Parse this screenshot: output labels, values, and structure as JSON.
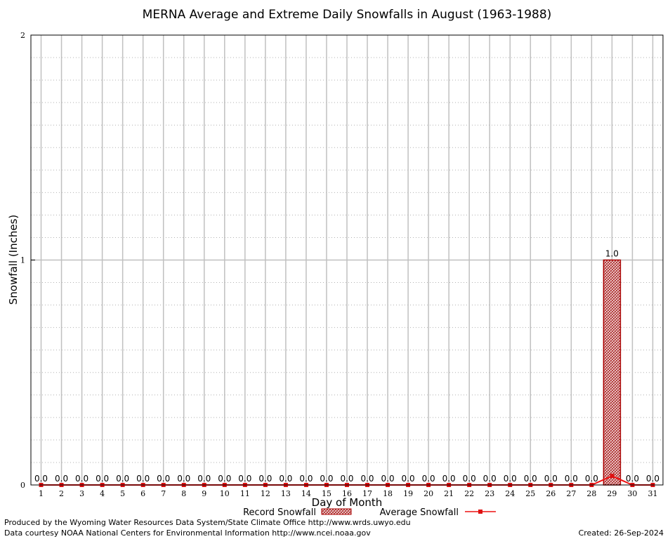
{
  "chart_data": {
    "type": "bar",
    "title": "MERNA Average and Extreme Daily Snowfalls in August (1963-1988)",
    "xlabel": "Day of Month",
    "ylabel": "Snowfall (Inches)",
    "ylim": [
      0,
      2
    ],
    "yticks": [
      "0",
      "1",
      "2"
    ],
    "grid": true,
    "legend_position": "bottom",
    "categories": [
      "1",
      "2",
      "3",
      "4",
      "5",
      "6",
      "7",
      "8",
      "9",
      "10",
      "11",
      "12",
      "13",
      "14",
      "15",
      "16",
      "17",
      "18",
      "19",
      "20",
      "21",
      "22",
      "23",
      "24",
      "25",
      "26",
      "27",
      "28",
      "29",
      "30",
      "31"
    ],
    "series": [
      {
        "name": "Record Snowfall",
        "kind": "bar",
        "values": [
          0,
          0,
          0,
          0,
          0,
          0,
          0,
          0,
          0,
          0,
          0,
          0,
          0,
          0,
          0,
          0,
          0,
          0,
          0,
          0,
          0,
          0,
          0,
          0,
          0,
          0,
          0,
          0,
          1.0,
          0,
          0
        ],
        "labels": [
          "0.0",
          "0.0",
          "0.0",
          "0.0",
          "0.0",
          "0.0",
          "0.0",
          "0.0",
          "0.0",
          "0.0",
          "0.0",
          "0.0",
          "0.0",
          "0.0",
          "0.0",
          "0.0",
          "0.0",
          "0.0",
          "0.0",
          "0.0",
          "0.0",
          "0.0",
          "0.0",
          "0.0",
          "0.0",
          "0.0",
          "0.0",
          "0.0",
          "1.0",
          "0.0",
          "0.0"
        ]
      },
      {
        "name": "Average Snowfall",
        "kind": "line",
        "values": [
          0,
          0,
          0,
          0,
          0,
          0,
          0,
          0,
          0,
          0,
          0,
          0,
          0,
          0,
          0,
          0,
          0,
          0,
          0,
          0,
          0,
          0,
          0,
          0,
          0,
          0,
          0,
          0,
          0.04,
          0,
          0
        ]
      }
    ],
    "colors": {
      "bar_fill": "#c08080",
      "bar_stroke": "#aa0000",
      "line": "#ee1111",
      "marker": "#dd1111",
      "grid_major": "#c0c0c0",
      "grid_minor": "#b0b0b0"
    }
  },
  "footer": {
    "credit_line1": "Produced by the Wyoming Water Resources Data System/State Climate Office http://www.wrds.uwyo.edu",
    "credit_line2": "Data courtesy NOAA National Centers for Environmental Information http://www.ncei.noaa.gov",
    "created": "Created:  26-Sep-2024"
  }
}
